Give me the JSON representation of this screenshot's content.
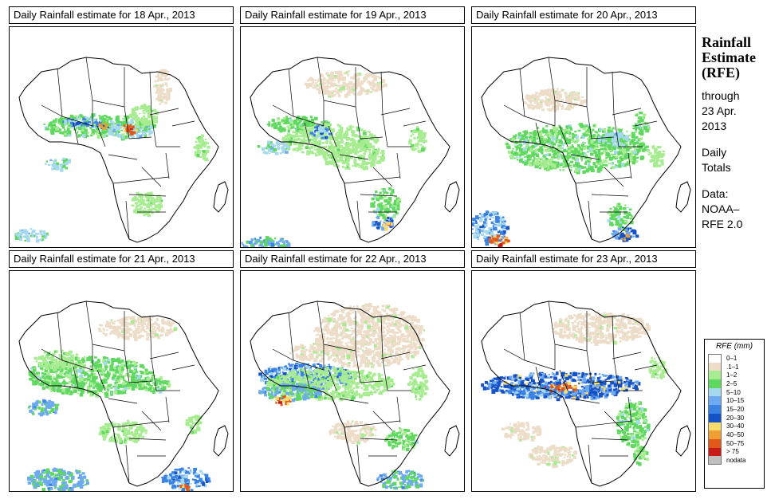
{
  "panels": [
    {
      "title": "Daily Rainfall estimate for  18 Apr., 2013"
    },
    {
      "title": "Daily Rainfall estimate for  19 Apr., 2013"
    },
    {
      "title": "Daily Rainfall estimate for  20 Apr., 2013"
    },
    {
      "title": "Daily Rainfall estimate for  21 Apr., 2013"
    },
    {
      "title": "Daily Rainfall estimate for  22 Apr., 2013"
    },
    {
      "title": "Daily Rainfall estimate for  23 Apr., 2013"
    }
  ],
  "side": {
    "title1": "Rainfall",
    "title2": "Estimate",
    "title3": "(RFE)",
    "line1": "through",
    "line2": "23 Apr.",
    "line3": "2013",
    "line4": "Daily",
    "line5": "Totals",
    "line6": "Data:",
    "line7": "NOAA–",
    "line8": "RFE 2.0"
  },
  "legend": {
    "title": "RFE (mm)",
    "items": [
      {
        "label": "0–1",
        "color": "#ffffff"
      },
      {
        "label": ".1–1",
        "color": "#ecdcc8"
      },
      {
        "label": "1–2",
        "color": "#a8ec92"
      },
      {
        "label": "2–5",
        "color": "#5ed85e"
      },
      {
        "label": "5–10",
        "color": "#a6d8ee"
      },
      {
        "label": "10–15",
        "color": "#6eaaf2"
      },
      {
        "label": "15–20",
        "color": "#3a82e4"
      },
      {
        "label": "20–30",
        "color": "#1552c8"
      },
      {
        "label": "30–40",
        "color": "#f5dc6c"
      },
      {
        "label": "40–50",
        "color": "#f0a032"
      },
      {
        "label": "50–75",
        "color": "#e25818"
      },
      {
        "label": "> 75",
        "color": "#c81818"
      },
      {
        "label": "nodata",
        "color": "#bfbfbf"
      }
    ]
  }
}
